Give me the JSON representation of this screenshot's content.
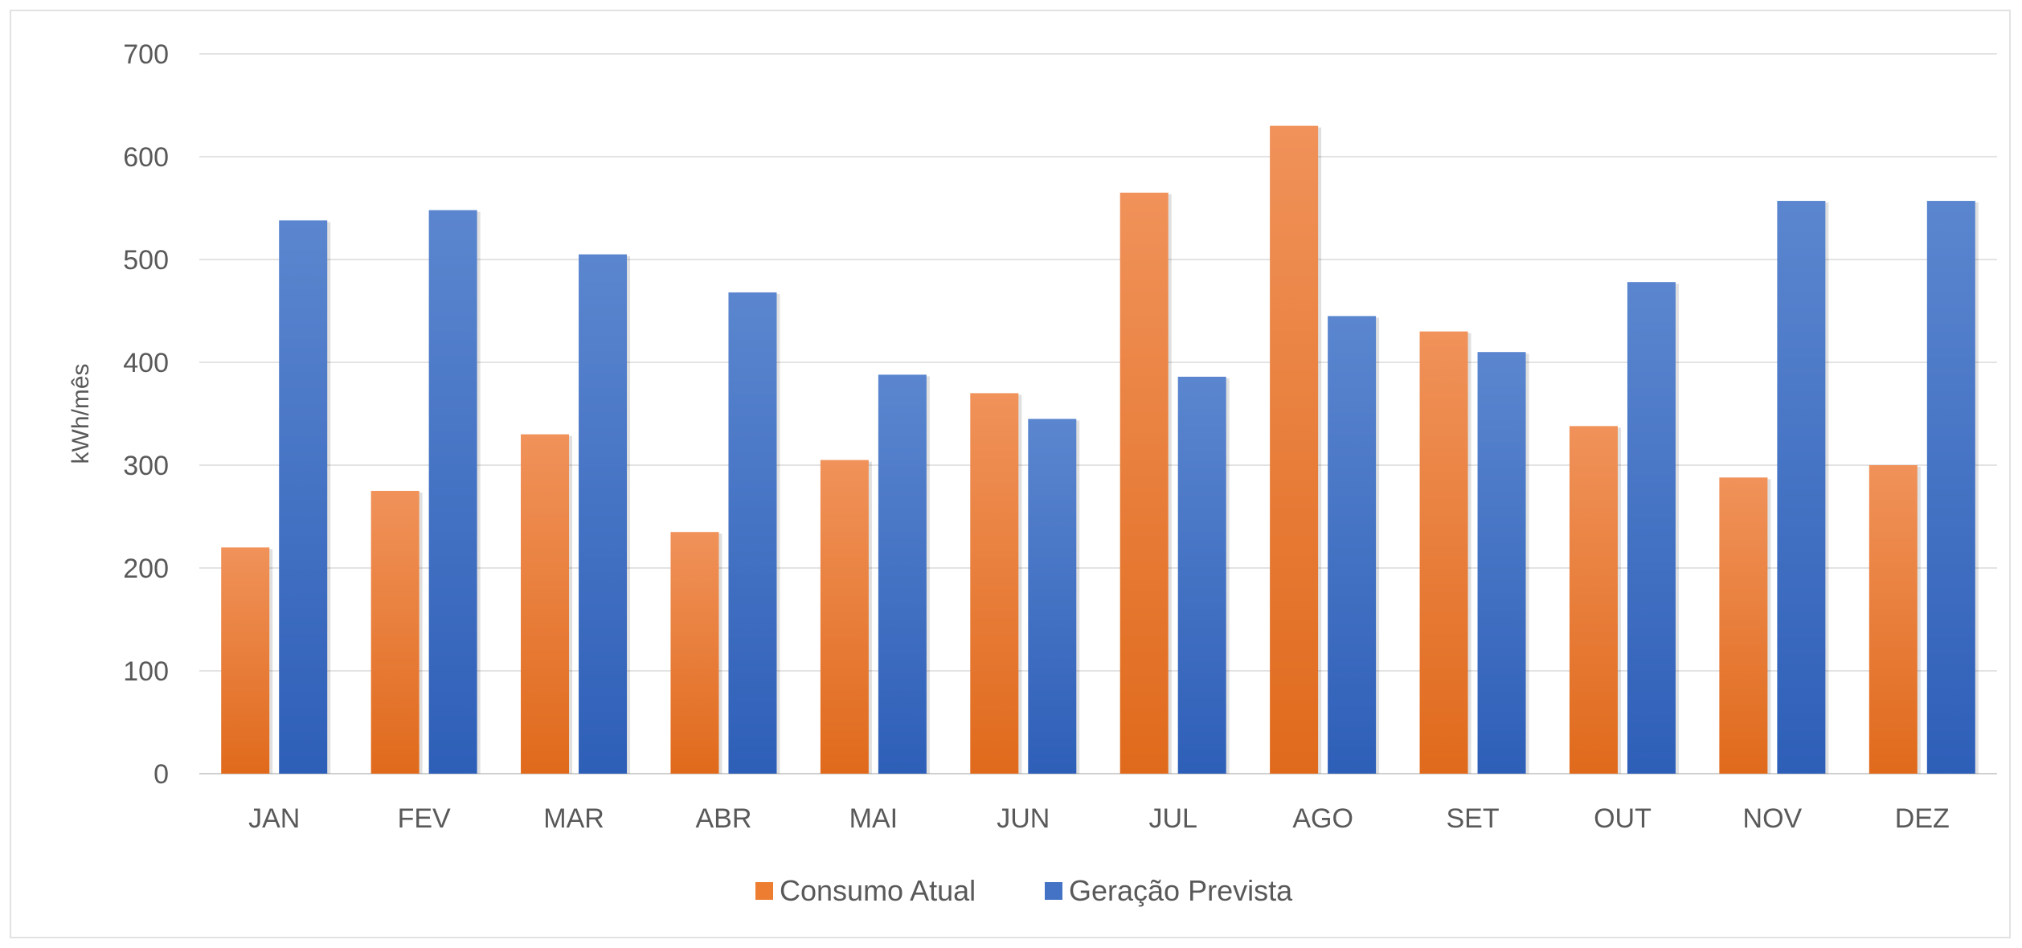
{
  "chart_data": {
    "type": "bar",
    "title": "",
    "xlabel": "",
    "ylabel": "kWh/mês",
    "ylim": [
      0,
      700
    ],
    "yticks": [
      0,
      100,
      200,
      300,
      400,
      500,
      600,
      700
    ],
    "grid": true,
    "legend_position": "bottom",
    "categories": [
      "JAN",
      "FEV",
      "MAR",
      "ABR",
      "MAI",
      "JUN",
      "JUL",
      "AGO",
      "SET",
      "OUT",
      "NOV",
      "DEZ"
    ],
    "series": [
      {
        "name": "Consumo Atual",
        "color": "#ED7D31",
        "values": [
          220,
          275,
          330,
          235,
          305,
          370,
          565,
          630,
          430,
          338,
          288,
          300
        ]
      },
      {
        "name": "Geração Prevista",
        "color": "#4472C4",
        "values": [
          538,
          548,
          505,
          468,
          388,
          345,
          386,
          445,
          410,
          478,
          557,
          557
        ]
      }
    ]
  }
}
